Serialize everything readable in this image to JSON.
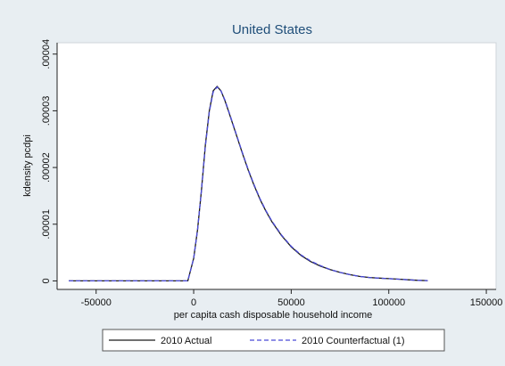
{
  "chart_data": {
    "type": "line",
    "title": "United States",
    "xlabel": "per capita cash disposable household income",
    "ylabel": "kdensity pcdpi",
    "xlim": [
      -70000,
      155000
    ],
    "ylim": [
      -1.5e-06,
      4.2e-05
    ],
    "x_ticks": [
      -50000,
      0,
      50000,
      100000,
      150000
    ],
    "x_tick_labels": [
      "-50000",
      "0",
      "50000",
      "100000",
      "150000"
    ],
    "y_ticks": [
      0,
      1e-05,
      2e-05,
      3e-05,
      4e-05
    ],
    "y_tick_labels": [
      "0",
      ".00001",
      ".00002",
      ".00003",
      ".00004"
    ],
    "grid": false,
    "legend_position": "bottom",
    "series": [
      {
        "name": "2010 Actual",
        "color": "#1a1a1a",
        "dash": "solid",
        "x": [
          -64000,
          -40000,
          -20000,
          -3000,
          0,
          2000,
          4000,
          6000,
          8000,
          10000,
          12000,
          14000,
          16000,
          18000,
          20000,
          22000,
          25000,
          28000,
          31000,
          34000,
          37000,
          40000,
          45000,
          50000,
          55000,
          60000,
          65000,
          70000,
          75000,
          80000,
          85000,
          90000,
          95000,
          100000,
          105000,
          110000,
          115000,
          120000
        ],
        "y": [
          0,
          0,
          0,
          0,
          4e-06,
          9e-06,
          1.6e-05,
          2.4e-05,
          3e-05,
          3.35e-05,
          3.43e-05,
          3.35e-05,
          3.18e-05,
          2.98e-05,
          2.77e-05,
          2.56e-05,
          2.25e-05,
          1.95e-05,
          1.68e-05,
          1.44e-05,
          1.23e-05,
          1.05e-05,
          8e-06,
          6e-06,
          4.5e-06,
          3.4e-06,
          2.6e-06,
          2e-06,
          1.5e-06,
          1.1e-06,
          8e-07,
          6e-07,
          5e-07,
          4e-07,
          3e-07,
          2e-07,
          1e-07,
          5e-08
        ]
      },
      {
        "name": "2010 Counterfactual (1)",
        "color": "#4a4ad8",
        "dash": "dashed",
        "x": [
          -64000,
          -40000,
          -20000,
          -3000,
          0,
          2000,
          4000,
          6000,
          8000,
          10000,
          12000,
          14000,
          16000,
          18000,
          20000,
          22000,
          25000,
          28000,
          31000,
          34000,
          37000,
          40000,
          45000,
          50000,
          55000,
          60000,
          65000,
          70000,
          75000,
          80000,
          85000,
          90000,
          95000,
          100000,
          105000,
          110000,
          115000,
          120000
        ],
        "y": [
          0,
          0,
          0,
          0,
          4e-06,
          9e-06,
          1.6e-05,
          2.38e-05,
          2.98e-05,
          3.33e-05,
          3.42e-05,
          3.35e-05,
          3.19e-05,
          2.99e-05,
          2.78e-05,
          2.57e-05,
          2.26e-05,
          1.96e-05,
          1.69e-05,
          1.45e-05,
          1.24e-05,
          1.06e-05,
          8.1e-06,
          6.1e-06,
          4.6e-06,
          3.5e-06,
          2.7e-06,
          2e-06,
          1.5e-06,
          1.1e-06,
          8e-07,
          6e-07,
          5e-07,
          4e-07,
          3e-07,
          2e-07,
          1e-07,
          5e-08
        ]
      }
    ]
  },
  "colors": {
    "outer_background": "#e8eef2",
    "plot_background": "#ffffff",
    "title": "#1f4e79"
  }
}
